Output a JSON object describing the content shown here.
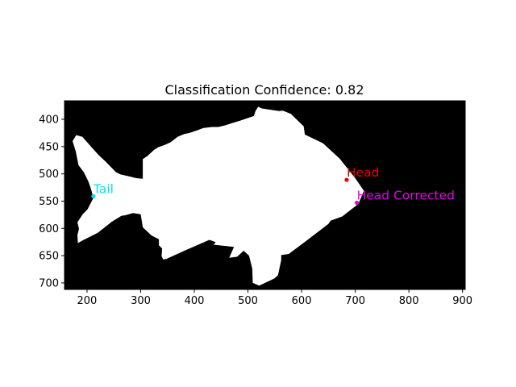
{
  "chart_data": {
    "type": "scatter",
    "title": "Classification Confidence: 0.82",
    "xlabel": "",
    "ylabel": "",
    "xlim": [
      158,
      905
    ],
    "ylim": [
      712,
      366
    ],
    "y_inverted": true,
    "grid": false,
    "x_ticks": [
      200,
      300,
      400,
      500,
      600,
      700,
      800,
      900
    ],
    "y_ticks": [
      400,
      450,
      500,
      550,
      600,
      650,
      700
    ],
    "image": {
      "description_free": true,
      "background_color": "#000000",
      "mask_color": "#ffffff",
      "extent_x": [
        158,
        905
      ],
      "extent_y": [
        366,
        712
      ],
      "silhouette_outline": [
        [
          519,
          377
        ],
        [
          526,
          380
        ],
        [
          558,
          385
        ],
        [
          565,
          384
        ],
        [
          580,
          390
        ],
        [
          604,
          413
        ],
        [
          606,
          428
        ],
        [
          640,
          444
        ],
        [
          671,
          472
        ],
        [
          700,
          508
        ],
        [
          716,
          531
        ],
        [
          706,
          555
        ],
        [
          676,
          578
        ],
        [
          654,
          586
        ],
        [
          650,
          592
        ],
        [
          610,
          622
        ],
        [
          576,
          647
        ],
        [
          562,
          649
        ],
        [
          562,
          658
        ],
        [
          556,
          686
        ],
        [
          549,
          692
        ],
        [
          521,
          705
        ],
        [
          509,
          700
        ],
        [
          508,
          674
        ],
        [
          502,
          650
        ],
        [
          492,
          641
        ],
        [
          480,
          652
        ],
        [
          465,
          654
        ],
        [
          474,
          634
        ],
        [
          436,
          630
        ],
        [
          440,
          625
        ],
        [
          428,
          621
        ],
        [
          384,
          640
        ],
        [
          348,
          656
        ],
        [
          342,
          657
        ],
        [
          339,
          651
        ],
        [
          340,
          637
        ],
        [
          334,
          631
        ],
        [
          334,
          620
        ],
        [
          320,
          613
        ],
        [
          304,
          598
        ],
        [
          300,
          574
        ],
        [
          286,
          572
        ],
        [
          271,
          576
        ],
        [
          264,
          577
        ],
        [
          246,
          588
        ],
        [
          220,
          608
        ],
        [
          192,
          622
        ],
        [
          183,
          627
        ],
        [
          182,
          612
        ],
        [
          185,
          601
        ],
        [
          182,
          589
        ],
        [
          192,
          574
        ],
        [
          201,
          565
        ],
        [
          212,
          544
        ],
        [
          208,
          530
        ],
        [
          203,
          515
        ],
        [
          194,
          497
        ],
        [
          184,
          484
        ],
        [
          179,
          459
        ],
        [
          173,
          440
        ],
        [
          180,
          429
        ],
        [
          191,
          432
        ],
        [
          202,
          444
        ],
        [
          212,
          455
        ],
        [
          222,
          466
        ],
        [
          233,
          476
        ],
        [
          244,
          487
        ],
        [
          254,
          497
        ],
        [
          262,
          501
        ],
        [
          280,
          505
        ],
        [
          292,
          508
        ],
        [
          304,
          509
        ],
        [
          304,
          473
        ],
        [
          313,
          467
        ],
        [
          325,
          456
        ],
        [
          333,
          451
        ],
        [
          345,
          447
        ],
        [
          356,
          442
        ],
        [
          369,
          432
        ],
        [
          381,
          427
        ],
        [
          391,
          425
        ],
        [
          406,
          420
        ],
        [
          417,
          416
        ],
        [
          432,
          414
        ],
        [
          445,
          414
        ],
        [
          458,
          411
        ],
        [
          473,
          406
        ],
        [
          484,
          403
        ],
        [
          496,
          399
        ],
        [
          511,
          394
        ],
        [
          514,
          385
        ]
      ]
    },
    "series": [
      {
        "name": "Tail",
        "x": [
          212
        ],
        "y": [
          541
        ],
        "color": "#00e5e5"
      },
      {
        "name": "Head",
        "x": [
          684
        ],
        "y": [
          511
        ],
        "color": "#e60000"
      },
      {
        "name": "Head Corrected",
        "x": [
          703
        ],
        "y": [
          553
        ],
        "color": "#e600e6"
      }
    ],
    "annotations": [
      {
        "text": "Tail",
        "x": 212,
        "y": 541,
        "color": "#00e5e5"
      },
      {
        "text": "Head",
        "x": 684,
        "y": 511,
        "color": "#e60000"
      },
      {
        "text": "Head Corrected",
        "x": 703,
        "y": 553,
        "color": "#e600e6"
      }
    ]
  }
}
